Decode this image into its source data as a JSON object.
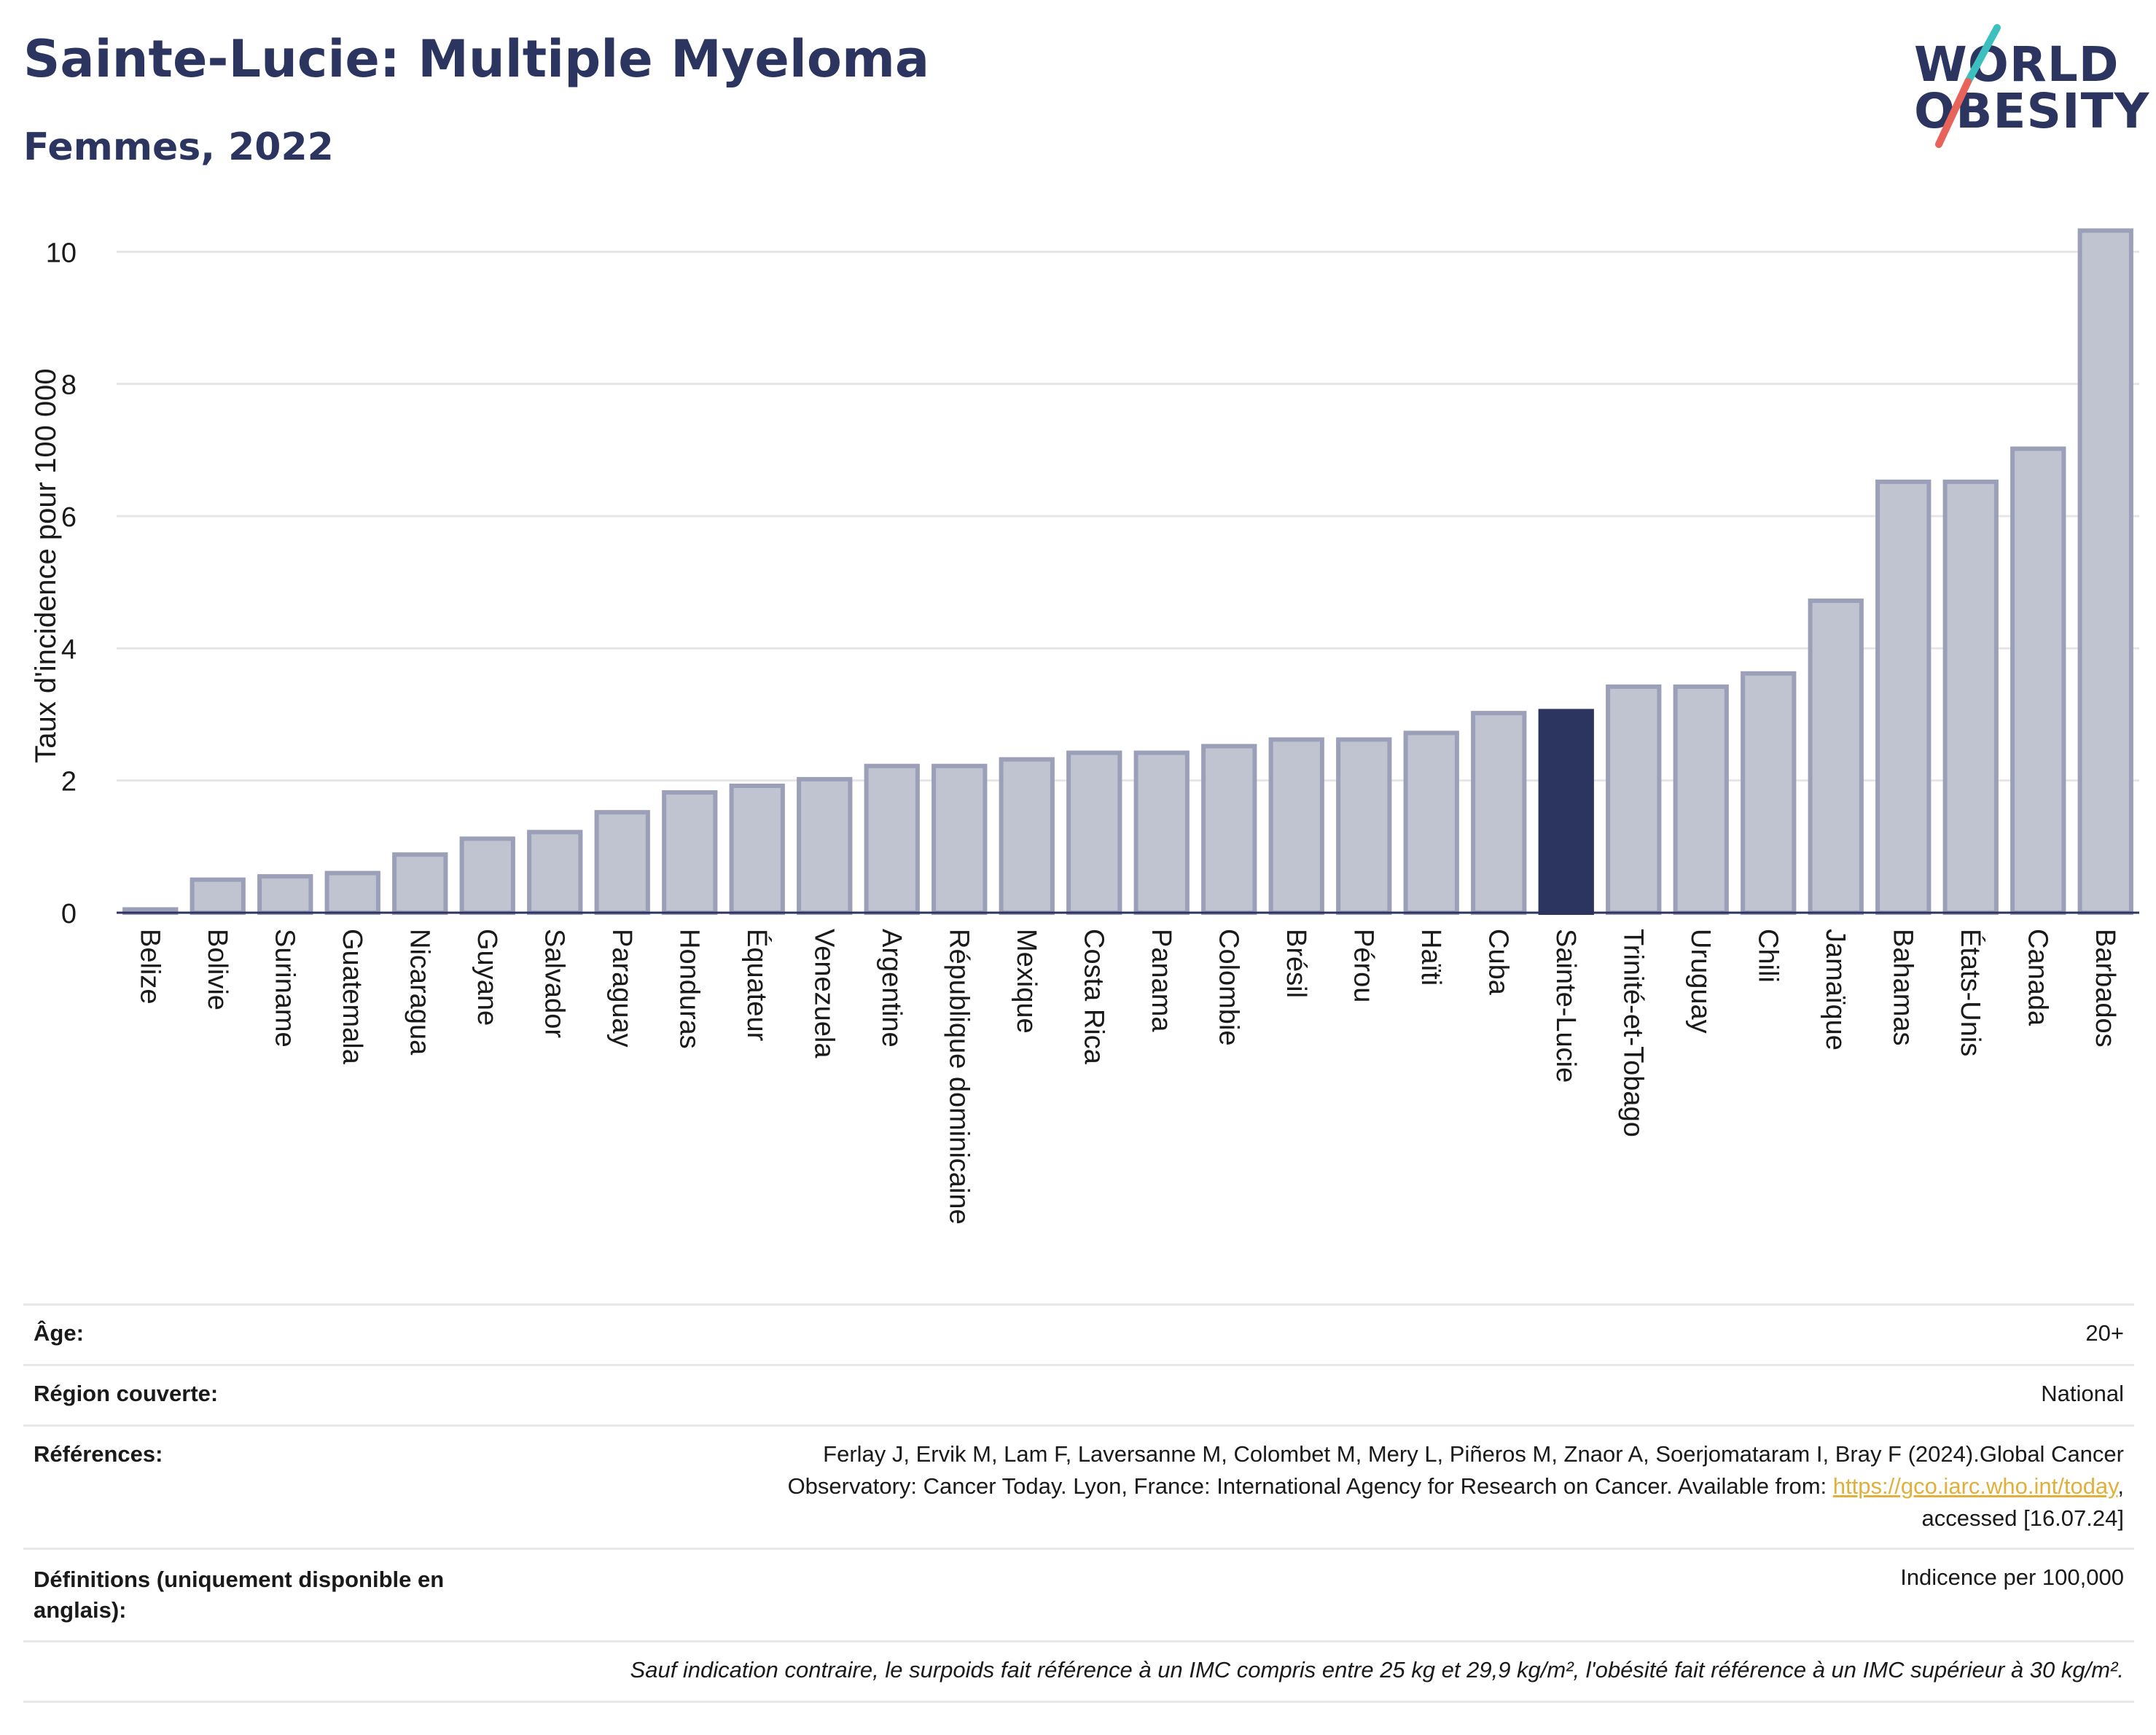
{
  "header": {
    "title": "Sainte-Lucie: Multiple Myeloma",
    "subtitle": "Femmes, 2022"
  },
  "logo": {
    "line1": "WORLD",
    "line2": "OBESITY"
  },
  "colors": {
    "bar": "#c0c3d0",
    "bar_stroke": "#9ba0b8",
    "highlight": "#2b3560",
    "text": "#2b3560",
    "link": "#e2b03a",
    "logo_slash_teal": "#3bbfbf",
    "logo_slash_red": "#e8635a"
  },
  "chart_data": {
    "type": "bar",
    "ylabel": "Taux d'incidence pour 100 000",
    "ylim": [
      0,
      10.5
    ],
    "yticks": [
      0,
      2,
      4,
      6,
      8,
      10
    ],
    "grid": true,
    "highlight": "Sainte-Lucie",
    "categories": [
      "Belize",
      "Bolivie",
      "Suriname",
      "Guatemala",
      "Nicaragua",
      "Guyane",
      "Salvador",
      "Paraguay",
      "Honduras",
      "Équateur",
      "Venezuela",
      "Argentine",
      "République dominicaine",
      "Mexique",
      "Costa Rica",
      "Panama",
      "Colombie",
      "Brésil",
      "Pérou",
      "Haïti",
      "Cuba",
      "Sainte-Lucie",
      "Trinité-et-Tobago",
      "Uruguay",
      "Chili",
      "Jamaïque",
      "Bahamas",
      "États-Unis",
      "Canada",
      "Barbados"
    ],
    "values": [
      0.05,
      0.5,
      0.55,
      0.6,
      0.88,
      1.12,
      1.22,
      1.52,
      1.82,
      1.92,
      2.02,
      2.22,
      2.22,
      2.32,
      2.42,
      2.42,
      2.52,
      2.62,
      2.62,
      2.72,
      3.02,
      3.05,
      3.42,
      3.42,
      3.62,
      4.72,
      6.52,
      6.52,
      7.02,
      10.32
    ]
  },
  "info": {
    "age_label": "Âge:",
    "age_value": "20+",
    "region_label": "Région couverte:",
    "region_value": "National",
    "refs_label": "Références:",
    "refs_line1": "Ferlay J, Ervik M, Lam F, Laversanne M, Colombet M, Mery L, Piñeros M, Znaor A, Soerjomataram I, Bray F (2024).Global Cancer",
    "refs_line2": "Observatory: Cancer Today. Lyon, France: International Agency for Research on Cancer. Available from: ",
    "refs_link": "https://gco.iarc.who.int/today",
    "refs_line2_end": ",",
    "refs_line3": "accessed [16.07.24]",
    "def_label_1": "Définitions (uniquement disponible en",
    "def_label_2": "anglais):",
    "def_value": "Indicence per 100,000",
    "note": "Sauf indication contraire, le surpoids fait référence à un IMC compris entre 25 kg et 29,9 kg/m², l'obésité fait référence à un IMC supérieur à 30 kg/m²."
  }
}
